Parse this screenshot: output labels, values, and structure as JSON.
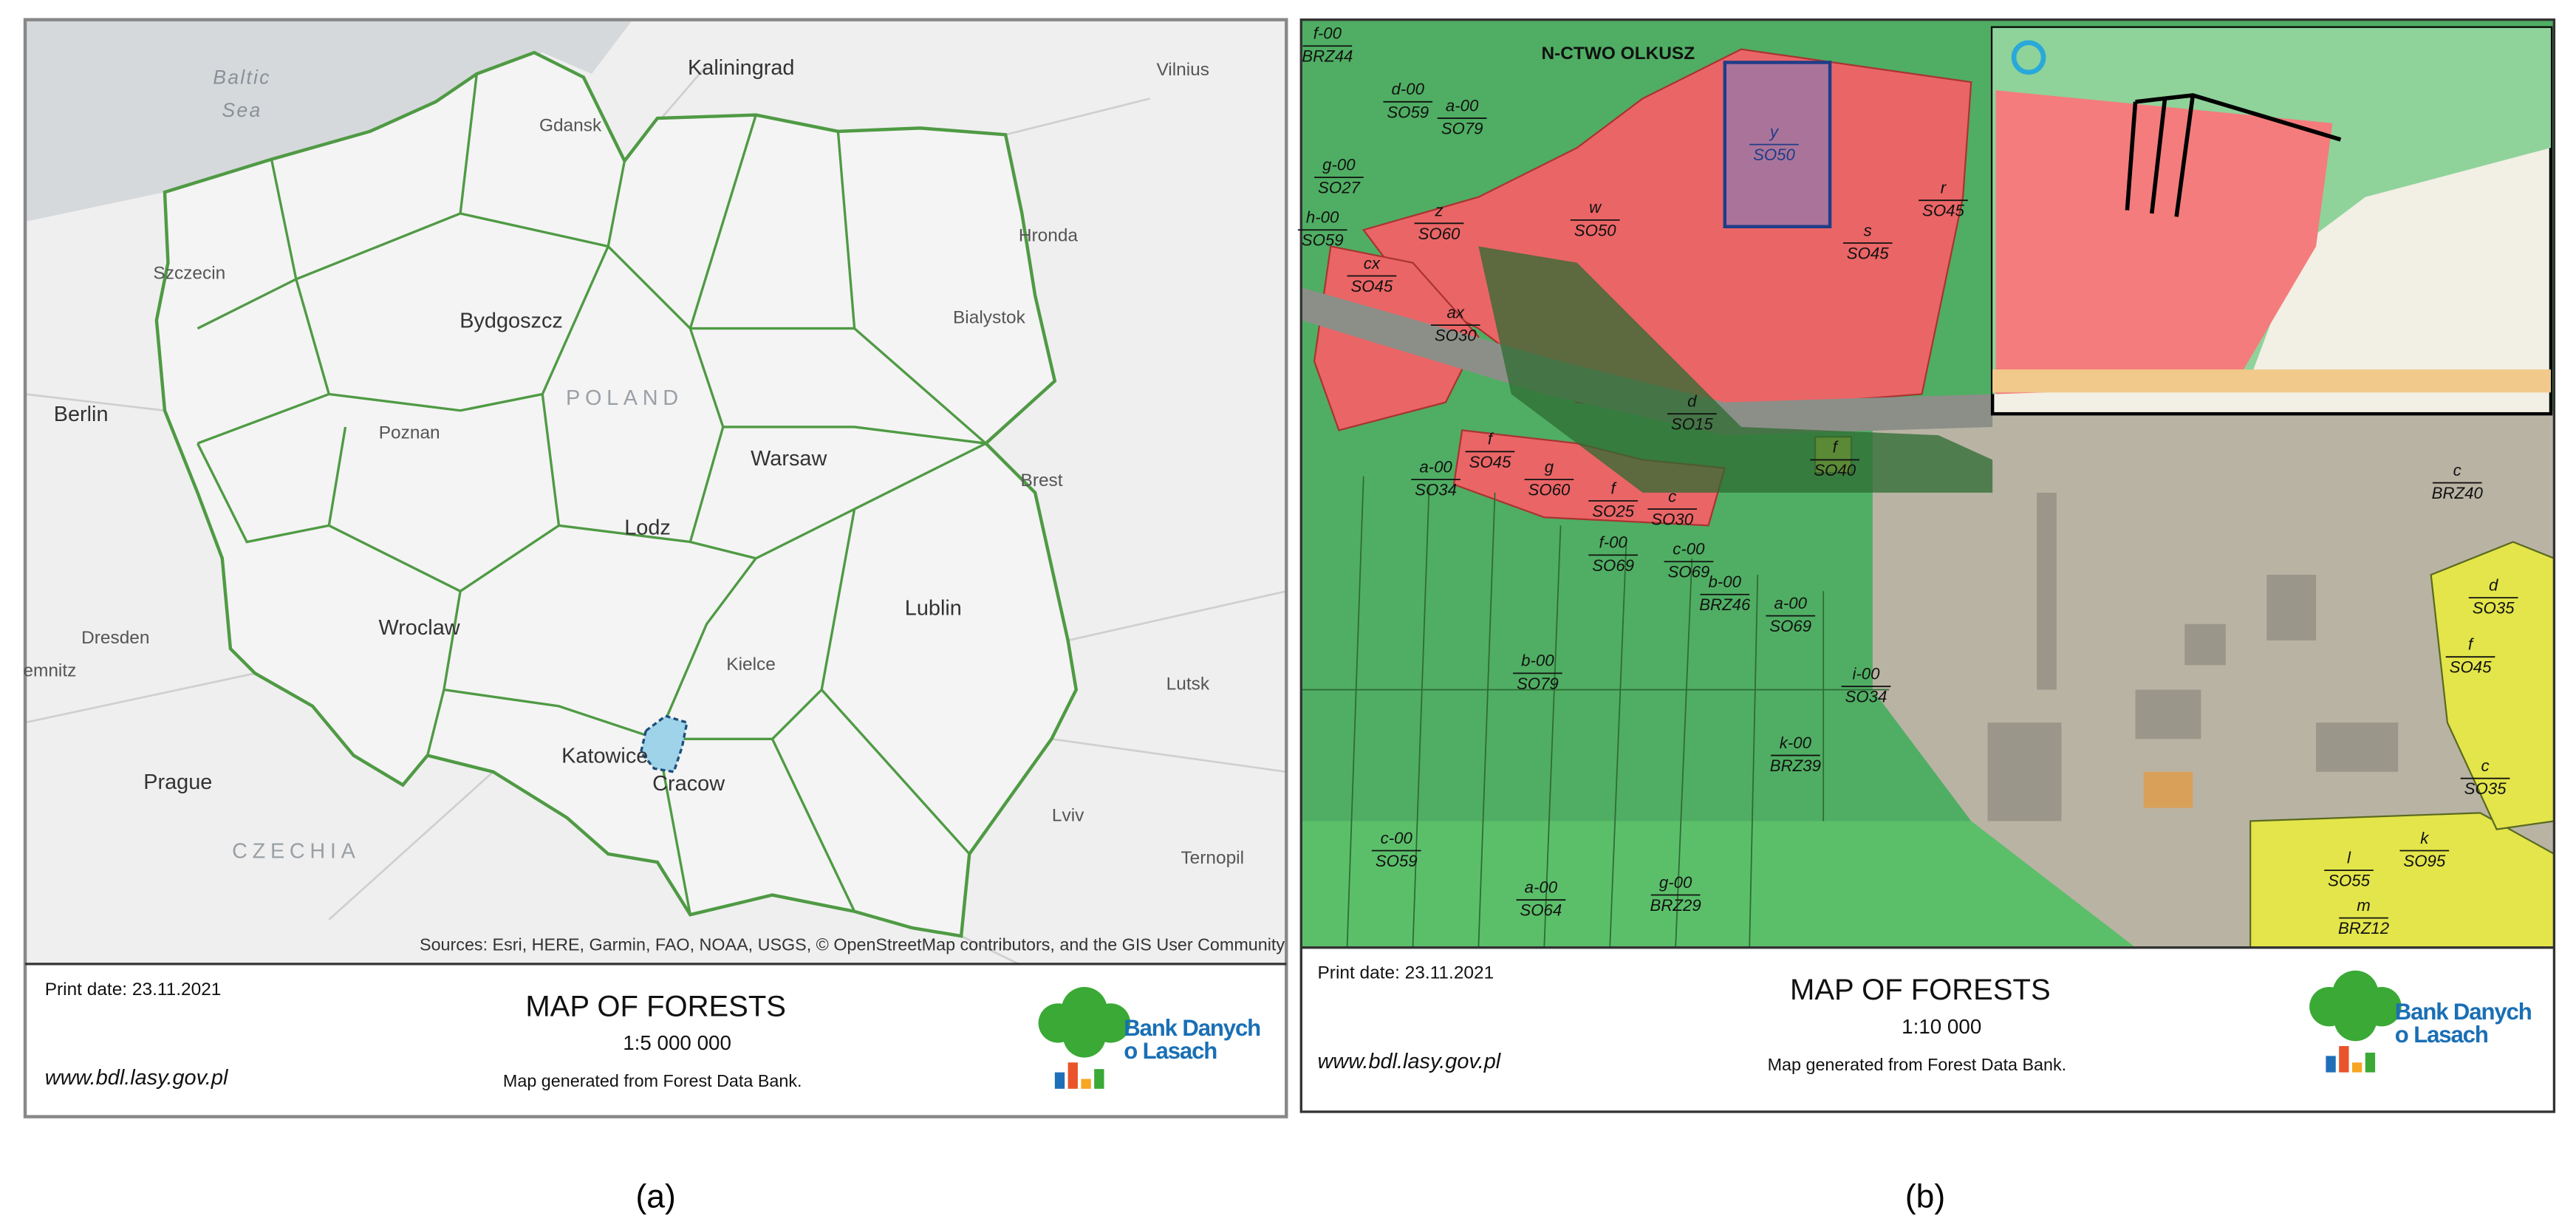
{
  "panels": [
    {
      "caption": "(a)",
      "map": {
        "places": [
          "Baltic",
          "Sea",
          "Kaliningrad",
          "Vilnius",
          "Gdansk",
          "Szczecin",
          "Hronda",
          "Bydgoszcz",
          "Bialystok",
          "POLAND",
          "Berlin",
          "Poznan",
          "Warsaw",
          "Brest",
          "Lodz",
          "Lublin",
          "Dresden",
          "Wroclaw",
          "Kielce",
          "Lutsk",
          "emnitz",
          "Katowice",
          "Cracow",
          "Prague",
          "Lviv",
          "CZECHIA",
          "Ternopil"
        ],
        "sources": "Sources: Esri, HERE, Garmin, FAO, NOAA, USGS, © OpenStreetMap contributors, and the GIS User Community"
      },
      "footer": {
        "print_date": "Print date: 23.11.2021",
        "title": "MAP OF FORESTS",
        "scale": "1:5 000 000",
        "url": "www.bdl.lasy.gov.pl",
        "note": "Map generated from Forest Data Bank.",
        "logo_line1": "Bank Danych",
        "logo_line2": "o Lasach"
      }
    },
    {
      "caption": "(b)",
      "map": {
        "district": "N-CTWO OLKUSZ",
        "labels": [
          {
            "top": "f-00",
            "bottom": "BRZ44"
          },
          {
            "top": "d-00",
            "bottom": "SO59"
          },
          {
            "top": "a-00",
            "bottom": "SO79"
          },
          {
            "top": "g-00",
            "bottom": "SO27"
          },
          {
            "top": "h-00",
            "bottom": "SO59"
          },
          {
            "top": "z",
            "bottom": "SO60"
          },
          {
            "top": "w",
            "bottom": "SO50"
          },
          {
            "top": "y",
            "bottom": "SO50"
          },
          {
            "top": "s",
            "bottom": "SO45"
          },
          {
            "top": "r",
            "bottom": "SO45"
          },
          {
            "top": "cx",
            "bottom": "SO45"
          },
          {
            "top": "ax",
            "bottom": "SO30"
          },
          {
            "top": "d",
            "bottom": "SO15"
          },
          {
            "top": "f",
            "bottom": "SO45"
          },
          {
            "top": "g",
            "bottom": "SO60"
          },
          {
            "top": "f",
            "bottom": "SO25"
          },
          {
            "top": "c",
            "bottom": "SO30"
          },
          {
            "top": "f",
            "bottom": "SO40"
          },
          {
            "top": "a-00",
            "bottom": "SO34"
          },
          {
            "top": "f-00",
            "bottom": "SO69"
          },
          {
            "top": "c-00",
            "bottom": "SO69"
          },
          {
            "top": "b-00",
            "bottom": "BRZ46"
          },
          {
            "top": "a-00",
            "bottom": "SO69"
          },
          {
            "top": "c",
            "bottom": "BRZ40"
          },
          {
            "top": "d",
            "bottom": "SO35"
          },
          {
            "top": "f",
            "bottom": "SO45"
          },
          {
            "top": "c",
            "bottom": "SO35"
          },
          {
            "top": "l",
            "bottom": "SO55"
          },
          {
            "top": "k",
            "bottom": "SO95"
          },
          {
            "top": "m",
            "bottom": "BRZ12"
          },
          {
            "top": "g-00",
            "bottom": "BRZ29"
          },
          {
            "top": "i-00",
            "bottom": "SO34"
          },
          {
            "top": "k-00",
            "bottom": "BRZ39"
          },
          {
            "top": "c-00",
            "bottom": "SO59"
          },
          {
            "top": "a-00",
            "bottom": "SO64"
          },
          {
            "top": "b-00",
            "bottom": "SO79"
          }
        ]
      },
      "footer": {
        "print_date": "Print date: 23.11.2021",
        "title": "MAP OF FORESTS",
        "scale": "1:10 000",
        "url": "www.bdl.lasy.gov.pl",
        "note": "Map generated from Forest Data Bank.",
        "logo_line1": "Bank Danych",
        "logo_line2": "o Lasach"
      }
    }
  ]
}
